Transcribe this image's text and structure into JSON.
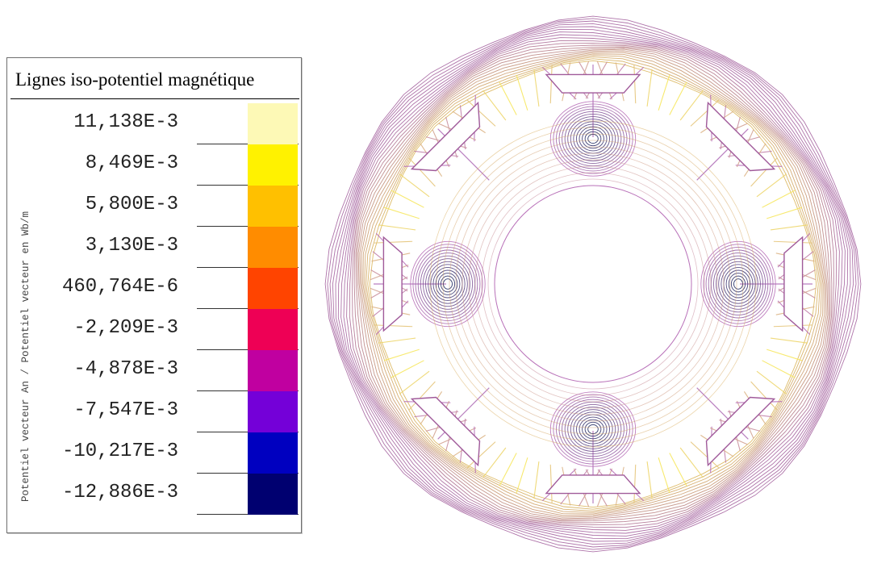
{
  "legend": {
    "title": "Lignes iso-potentiel magnétique",
    "axis_label": "Potentiel vecteur An / Potentiel vecteur en Wb/m",
    "levels": [
      {
        "label": "11,138E-3",
        "color": "#fdf9b6"
      },
      {
        "label": "8,469E-3",
        "color": "#fff200"
      },
      {
        "label": "5,800E-3",
        "color": "#ffc000"
      },
      {
        "label": "3,130E-3",
        "color": "#ff8c00"
      },
      {
        "label": "460,764E-6",
        "color": "#ff4400"
      },
      {
        "label": "-2,209E-3",
        "color": "#ee0055"
      },
      {
        "label": "-4,878E-3",
        "color": "#c000a0"
      },
      {
        "label": "-7,547E-3",
        "color": "#7400d8"
      },
      {
        "label": "-10,217E-3",
        "color": "#0000c0"
      },
      {
        "label": "-12,886E-3",
        "color": "#000070"
      }
    ]
  },
  "diagram": {
    "stator_teeth": 8,
    "rotor_poles": 4,
    "line_colors": {
      "outer": "#a05a9a",
      "mid": "#b870b8",
      "warm": "#e8c83a",
      "hot": "#fbf05a",
      "cold": "#202a60",
      "spoke": "#8a2a96"
    }
  }
}
